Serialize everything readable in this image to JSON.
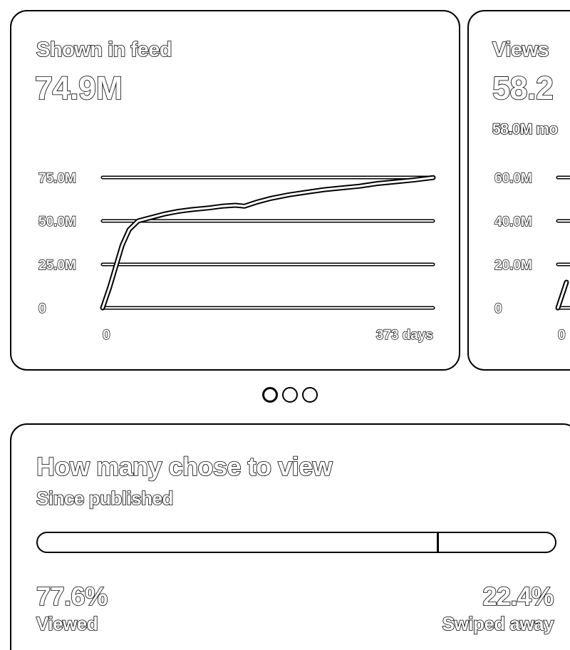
{
  "cards": [
    {
      "label": "Shown in feed",
      "value": "74.9M",
      "chart_data": {
        "type": "line",
        "ylim": [
          0,
          75000000
        ],
        "y_tick_labels": [
          "75.0M",
          "50.0M",
          "25.0M",
          "0"
        ],
        "x_tick_labels": [
          "0",
          "373 days"
        ],
        "xlim": [
          0,
          373
        ],
        "series": [
          {
            "x": [
              0,
              8,
              15,
              22,
              30,
              40,
              55,
              70,
              85,
              100,
              120,
              135,
              150,
              160,
              175,
              190,
              210,
              230,
              250,
              270,
              290,
              310,
              330,
              350,
              373
            ],
            "y": [
              0,
              12000000,
              24000000,
              36000000,
              45000000,
              50000000,
              52000000,
              54000000,
              55500000,
              56500000,
              57500000,
              58500000,
              59000000,
              58500000,
              61000000,
              63000000,
              65000000,
              66500000,
              68000000,
              69000000,
              70000000,
              71500000,
              72500000,
              73500000,
              74900000
            ]
          }
        ]
      }
    },
    {
      "label": "Views",
      "value": "58.2",
      "sub": "58.0M mo",
      "chart_data": {
        "type": "line",
        "y_tick_labels": [
          "60.0M",
          "40.0M",
          "20.0M",
          "0"
        ],
        "x_tick_labels": [
          "0"
        ]
      }
    }
  ],
  "pagination": {
    "count": 3,
    "active": 0
  },
  "choice": {
    "title": "How many chose to view",
    "subtitle": "Since published",
    "viewed_pct": "77.6%",
    "viewed_label": "Viewed",
    "swiped_pct": "22.4%",
    "swiped_label": "Swiped away",
    "viewed_fraction": 0.776
  }
}
